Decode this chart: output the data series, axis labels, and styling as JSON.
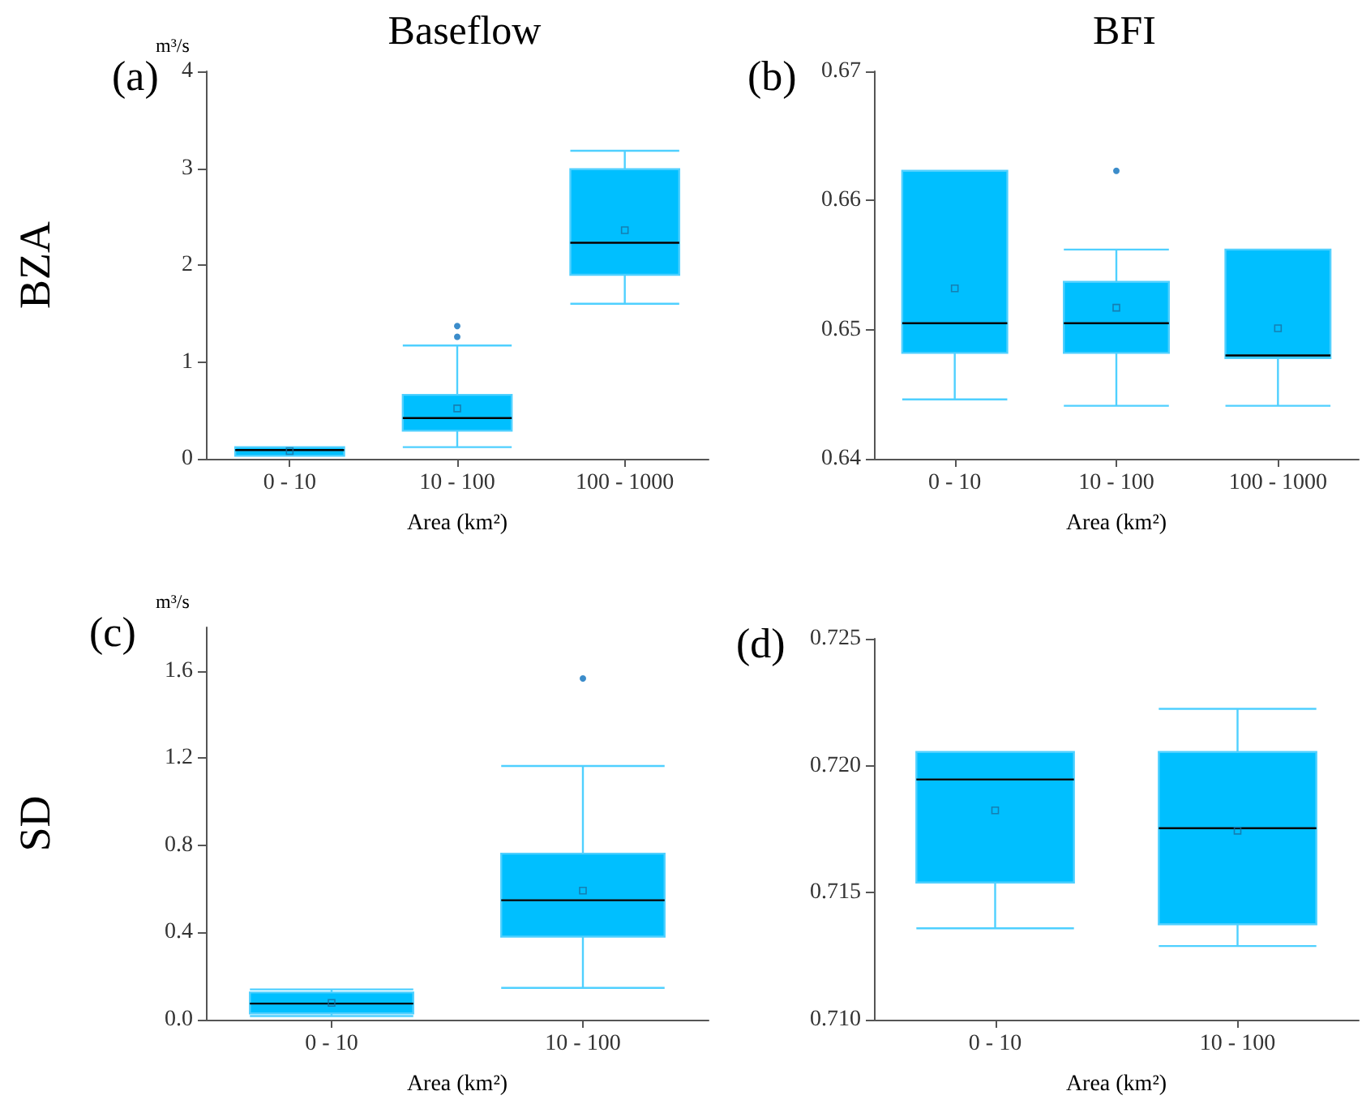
{
  "chart_data": [
    {
      "type": "box",
      "title": "Baseflow",
      "ylabel": "BZA",
      "xlabel": "Area (km²)",
      "annotations": [
        "(a)",
        "m³/s"
      ],
      "categories": [
        "0 - 10",
        "10 - 100",
        "100 - 1000"
      ],
      "ylim": [
        0,
        4
      ],
      "yticks": [
        0,
        1,
        2,
        3,
        4
      ],
      "series": [
        {
          "color": "#00bfff",
          "boxes": [
            {
              "low": 0.03,
              "q1": 0.03,
              "median": 0.09,
              "q3": 0.12,
              "high": 0.12,
              "mean": 0.08
            },
            {
              "low": 0.12,
              "q1": 0.29,
              "median": 0.42,
              "q3": 0.66,
              "high": 1.17,
              "mean": 0.52,
              "outliers": [
                1.26,
                1.37
              ]
            },
            {
              "low": 1.6,
              "q1": 1.9,
              "median": 2.23,
              "q3": 2.99,
              "high": 3.18,
              "mean": 2.36
            }
          ]
        }
      ]
    },
    {
      "type": "box",
      "title": "BFI",
      "xlabel": "Area (km²)",
      "annotations": [
        "(b)"
      ],
      "categories": [
        "0 - 10",
        "10 - 100",
        "100 - 1000"
      ],
      "ylim": [
        0.64,
        0.67
      ],
      "yticks": [
        0.64,
        0.65,
        0.66,
        0.67
      ],
      "series": [
        {
          "color": "#00bfff",
          "boxes": [
            {
              "low": 0.6446,
              "q1": 0.6482,
              "median": 0.6505,
              "q3": 0.6623,
              "high": 0.6623,
              "mean": 0.6532
            },
            {
              "low": 0.6441,
              "q1": 0.6482,
              "median": 0.6505,
              "q3": 0.6537,
              "high": 0.6562,
              "mean": 0.6517,
              "outliers": [
                0.6623
              ]
            },
            {
              "low": 0.6441,
              "q1": 0.6478,
              "median": 0.648,
              "q3": 0.6562,
              "high": 0.6562,
              "mean": 0.6501
            }
          ]
        }
      ]
    },
    {
      "type": "box",
      "ylabel": "SD",
      "xlabel": "Area (km²)",
      "annotations": [
        "(c)",
        "m³/s"
      ],
      "categories": [
        "0 - 10",
        "10 - 100"
      ],
      "ylim": [
        0,
        1.8
      ],
      "yticks": [
        {
          "value": 0,
          "label": "0.0"
        },
        0.4,
        0.8,
        1.2,
        1.6
      ],
      "series": [
        {
          "color": "#00bfff",
          "boxes": [
            {
              "low": 0.017,
              "q1": 0.029,
              "median": 0.074,
              "q3": 0.125,
              "high": 0.139,
              "mean": 0.077
            },
            {
              "low": 0.146,
              "q1": 0.381,
              "median": 0.548,
              "q3": 0.762,
              "high": 1.164,
              "mean": 0.592,
              "outliers": [
                1.566
              ]
            }
          ]
        }
      ]
    },
    {
      "type": "box",
      "xlabel": "Area (km²)",
      "annotations": [
        "(d)"
      ],
      "categories": [
        "0 - 10",
        "10 - 100"
      ],
      "ylim": [
        0.71,
        0.725
      ],
      "yticks": [
        {
          "value": 0.71,
          "label": "0.710"
        },
        0.715,
        {
          "value": 0.72,
          "label": "0.720"
        },
        0.725
      ],
      "series": [
        {
          "color": "#00bfff",
          "boxes": [
            {
              "low": 0.7136,
              "q1": 0.7154,
              "median": 0.71946,
              "q3": 0.72054,
              "high": 0.72054,
              "mean": 0.71824
            },
            {
              "low": 0.7129,
              "q1": 0.71376,
              "median": 0.71754,
              "q3": 0.72054,
              "high": 0.72224,
              "mean": 0.71744
            }
          ]
        }
      ]
    }
  ]
}
